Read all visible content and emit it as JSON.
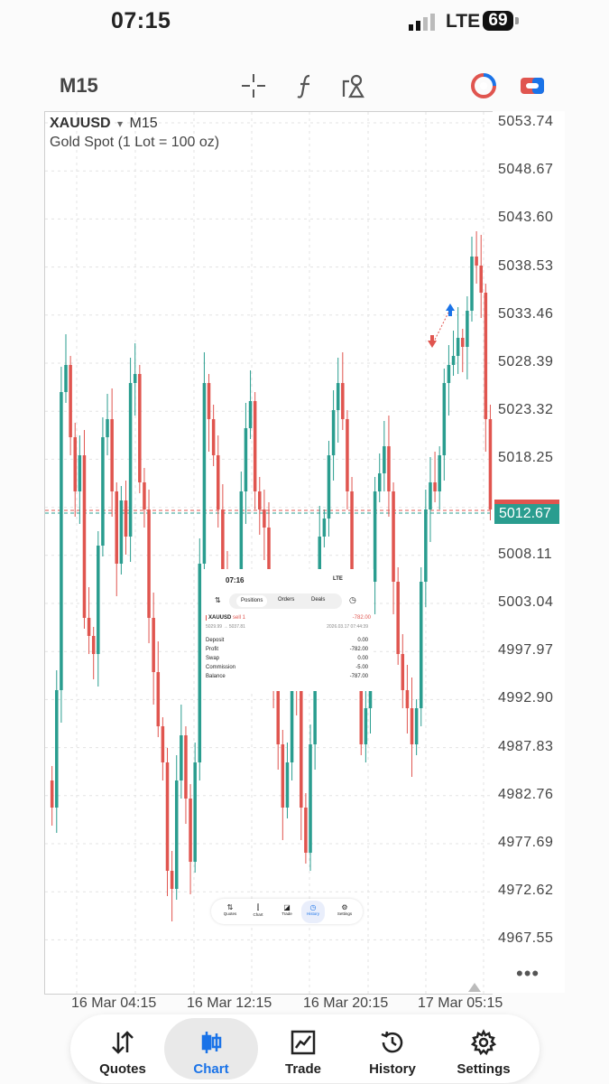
{
  "status_bar": {
    "time": "07:15",
    "network": "LTE",
    "battery": "69"
  },
  "toolbar": {
    "timeframe": "M15",
    "icons": [
      "crosshair-icon",
      "indicators-icon",
      "objects-icon",
      "trade-icon",
      "one-click-trading-icon"
    ]
  },
  "chart": {
    "symbol": "XAUUSD",
    "dropdown_glyph": "▾",
    "timeframe": "M15",
    "description": "Gold Spot (1 Lot = 100 oz)",
    "current_price": "5012.67",
    "price_labels": [
      "5053.74",
      "5048.67",
      "5043.60",
      "5038.53",
      "5033.46",
      "5028.39",
      "5023.32",
      "5018.25",
      "5008.11",
      "5003.04",
      "4997.97",
      "4992.90",
      "4987.83",
      "4982.76",
      "4977.69",
      "4972.62",
      "4967.55"
    ],
    "time_labels": [
      "16 Mar 04:15",
      "16 Mar 12:15",
      "16 Mar 20:15",
      "17 Mar 05:15"
    ],
    "more_glyph": "•••",
    "colors": {
      "bull": "#2a9d8f",
      "bear": "#e0554f"
    }
  },
  "overlay": {
    "time": "07:16",
    "network": "LTE",
    "tabs": [
      "Positions",
      "Orders",
      "Deals"
    ],
    "position": {
      "symbol": "XAUUSD",
      "side": "sell 1",
      "pnl": "-782.00",
      "prices": "5029.99 → 5037.81",
      "datetime": "2026.03.17 07:44:39"
    },
    "summary": [
      {
        "label": "Deposit",
        "value": "0.00"
      },
      {
        "label": "Profit",
        "value": "-782.00"
      },
      {
        "label": "Swap",
        "value": "0.00"
      },
      {
        "label": "Commission",
        "value": "-5.00"
      },
      {
        "label": "Balance",
        "value": "-787.00"
      }
    ],
    "dock": [
      "Quotes",
      "Chart",
      "Trade",
      "History",
      "Settings"
    ]
  },
  "nav": {
    "items": [
      {
        "label": "Quotes",
        "icon": "quotes-icon"
      },
      {
        "label": "Chart",
        "icon": "chart-icon"
      },
      {
        "label": "Trade",
        "icon": "trade-icon"
      },
      {
        "label": "History",
        "icon": "history-icon"
      },
      {
        "label": "Settings",
        "icon": "settings-icon"
      }
    ],
    "active": "Chart",
    "active_color": "#1a73e8"
  }
}
